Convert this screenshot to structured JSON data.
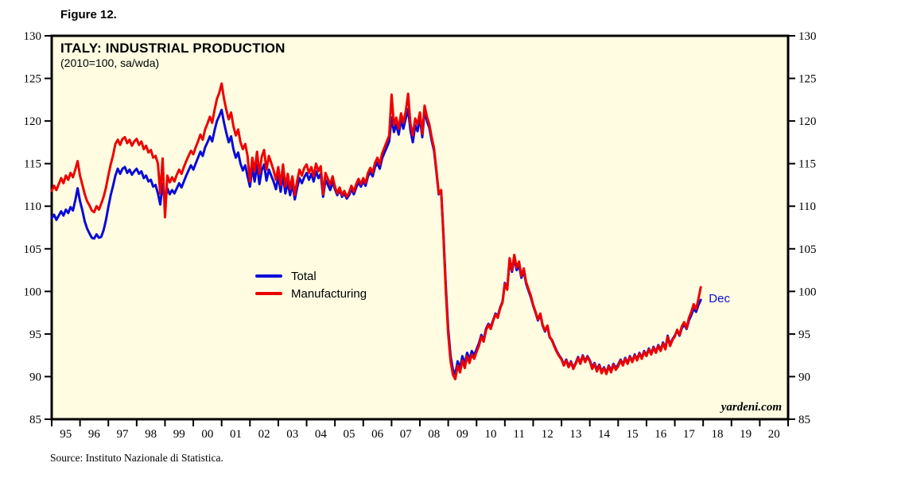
{
  "figure_label": "Figure 12.",
  "source_note": "Source: Instituto Nazionale di Statistica.",
  "watermark": "yardeni.com",
  "chart_data": {
    "type": "line",
    "title": "ITALY: INDUSTRIAL PRODUCTION",
    "subtitle": "(2010=100, sa/wda)",
    "plot_bg": "#fffce1",
    "border_color": "#000000",
    "grid": false,
    "legend_position": "center-left",
    "ylim": [
      85,
      130
    ],
    "y_ticks": [
      85,
      90,
      95,
      100,
      105,
      110,
      115,
      120,
      125,
      130
    ],
    "x_start_year": 1995,
    "x_range_years": 26,
    "points_per_year": 12,
    "x_tick_labels": [
      "95",
      "96",
      "97",
      "98",
      "99",
      "00",
      "01",
      "02",
      "03",
      "04",
      "05",
      "06",
      "07",
      "08",
      "09",
      "10",
      "11",
      "12",
      "13",
      "14",
      "15",
      "16",
      "17",
      "18",
      "19",
      "20"
    ],
    "annotation": {
      "text": "Dec",
      "color": "#0a0ad8",
      "x_year": 2018.2,
      "y_value": 99.0
    },
    "series": [
      {
        "name": "Total",
        "color": "#0a0ad8",
        "values": [
          108.6,
          109.0,
          108.4,
          108.9,
          109.4,
          108.9,
          109.6,
          109.2,
          109.9,
          109.5,
          110.7,
          112.1,
          110.6,
          109.5,
          108.2,
          107.4,
          106.8,
          106.3,
          106.2,
          106.7,
          106.3,
          106.4,
          107.2,
          108.4,
          109.9,
          111.3,
          112.4,
          113.6,
          114.4,
          113.8,
          114.4,
          114.6,
          113.9,
          114.3,
          113.7,
          114.1,
          114.4,
          113.8,
          114.1,
          113.3,
          113.6,
          112.9,
          113.1,
          112.3,
          112.5,
          111.5,
          110.2,
          112.6,
          110.4,
          112.1,
          111.4,
          111.9,
          111.5,
          112.1,
          112.7,
          112.2,
          112.9,
          113.6,
          114.2,
          114.8,
          114.3,
          115.0,
          115.7,
          116.4,
          115.9,
          116.9,
          117.5,
          118.2,
          117.6,
          118.9,
          120.0,
          120.6,
          121.3,
          119.8,
          118.6,
          117.5,
          118.2,
          116.7,
          115.7,
          116.3,
          115.0,
          114.2,
          114.8,
          113.5,
          112.3,
          114.5,
          112.9,
          114.9,
          112.6,
          114.2,
          114.9,
          113.0,
          114.3,
          113.6,
          112.9,
          112.0,
          113.5,
          111.7,
          113.7,
          111.5,
          112.8,
          111.3,
          112.6,
          110.8,
          112.2,
          113.3,
          112.7,
          113.4,
          113.9,
          113.1,
          113.8,
          112.9,
          114.1,
          113.3,
          113.8,
          111.1,
          113.1,
          112.5,
          111.9,
          112.8,
          112.0,
          111.3,
          111.9,
          111.1,
          111.5,
          110.9,
          111.3,
          112.0,
          111.4,
          112.2,
          112.8,
          112.3,
          112.9,
          112.4,
          113.5,
          114.0,
          113.5,
          114.6,
          115.1,
          114.4,
          115.6,
          116.3,
          116.9,
          117.6,
          120.4,
          118.7,
          119.6,
          118.4,
          120.1,
          119.1,
          120.3,
          121.4,
          118.9,
          117.5,
          119.5,
          118.8,
          120.4,
          118.1,
          121.2,
          120.0,
          119.2,
          117.7,
          116.5,
          114.0,
          111.4,
          111.8,
          106.6,
          100.6,
          95.6,
          92.4,
          90.8,
          90.3,
          91.8,
          91.0,
          92.4,
          91.5,
          92.8,
          92.0,
          93.0,
          92.5,
          93.2,
          93.9,
          94.9,
          94.3,
          95.6,
          96.2,
          95.8,
          96.6,
          97.4,
          97.1,
          98.1,
          98.8,
          101.0,
          100.3,
          103.6,
          102.3,
          103.9,
          102.5,
          103.1,
          101.6,
          102.4,
          100.9,
          100.1,
          99.3,
          98.3,
          97.5,
          96.6,
          97.3,
          96.0,
          95.3,
          95.9,
          94.6,
          94.3,
          93.6,
          93.0,
          92.5,
          92.1,
          91.4,
          92.0,
          91.2,
          91.8,
          91.0,
          91.6,
          92.3,
          91.6,
          92.5,
          91.8,
          92.4,
          91.9,
          91.1,
          91.6,
          90.8,
          91.4,
          90.6,
          91.1,
          90.4,
          91.3,
          90.7,
          91.5,
          91.0,
          91.4,
          92.0,
          91.4,
          92.2,
          91.6,
          92.4,
          91.8,
          92.6,
          92.0,
          92.8,
          92.2,
          93.0,
          92.5,
          93.3,
          92.7,
          93.5,
          92.9,
          93.7,
          93.1,
          94.0,
          93.3,
          94.8,
          93.7,
          94.4,
          94.8,
          95.4,
          94.8,
          95.7,
          96.1,
          95.6,
          96.6,
          97.2,
          98.0,
          97.6,
          98.4,
          99.0
        ]
      },
      {
        "name": "Manufacturing",
        "color": "#ee0000",
        "values": [
          111.8,
          112.4,
          111.9,
          112.6,
          113.3,
          112.7,
          113.6,
          113.1,
          113.9,
          113.4,
          114.3,
          115.3,
          113.6,
          112.5,
          111.4,
          110.6,
          110.1,
          109.5,
          109.3,
          110.0,
          109.6,
          110.3,
          111.1,
          112.2,
          113.6,
          114.9,
          116.0,
          117.3,
          117.8,
          117.2,
          117.9,
          118.1,
          117.4,
          117.8,
          117.1,
          117.6,
          117.9,
          117.2,
          117.6,
          116.7,
          117.1,
          116.3,
          116.6,
          115.7,
          115.9,
          115.0,
          111.5,
          115.6,
          108.7,
          113.6,
          112.8,
          113.4,
          112.9,
          113.7,
          114.3,
          113.8,
          114.6,
          115.3,
          115.9,
          116.5,
          116.1,
          116.9,
          117.6,
          118.4,
          117.8,
          119.0,
          119.7,
          120.5,
          119.8,
          121.3,
          122.6,
          123.3,
          124.4,
          122.6,
          121.3,
          120.2,
          121.0,
          119.4,
          118.3,
          119.0,
          117.5,
          116.7,
          117.3,
          115.9,
          112.9,
          115.7,
          114.1,
          116.4,
          113.8,
          115.8,
          116.6,
          114.3,
          115.9,
          115.1,
          114.2,
          113.1,
          114.6,
          112.5,
          114.9,
          112.3,
          113.8,
          112.0,
          113.5,
          111.3,
          113.0,
          114.3,
          113.6,
          114.5,
          114.9,
          113.9,
          114.6,
          113.5,
          115.0,
          114.1,
          114.7,
          111.4,
          113.9,
          113.2,
          112.5,
          113.5,
          112.3,
          111.5,
          112.2,
          111.3,
          111.8,
          111.1,
          111.6,
          112.4,
          111.7,
          112.6,
          113.2,
          112.6,
          113.3,
          112.7,
          113.9,
          114.5,
          113.9,
          115.1,
          115.7,
          114.9,
          116.2,
          116.9,
          117.6,
          118.3,
          123.1,
          119.5,
          120.4,
          119.1,
          120.9,
          119.8,
          121.1,
          123.2,
          119.7,
          118.3,
          120.3,
          119.6,
          121.0,
          118.5,
          121.8,
          120.5,
          119.6,
          118.1,
          116.8,
          114.2,
          111.5,
          111.9,
          106.3,
          100.0,
          95.0,
          91.8,
          90.2,
          89.7,
          91.3,
          90.5,
          91.9,
          91.0,
          92.4,
          91.6,
          92.6,
          92.1,
          92.9,
          93.6,
          94.7,
          94.1,
          95.4,
          96.1,
          95.6,
          96.5,
          97.3,
          96.9,
          98.0,
          98.7,
          100.9,
          100.2,
          103.9,
          102.5,
          104.3,
          102.8,
          103.5,
          101.8,
          102.7,
          101.1,
          100.3,
          99.5,
          98.4,
          97.6,
          96.7,
          97.4,
          96.1,
          95.4,
          96.0,
          94.7,
          94.2,
          93.5,
          92.9,
          92.4,
          92.0,
          91.3,
          91.9,
          91.1,
          91.7,
          90.9,
          91.5,
          92.2,
          91.5,
          92.4,
          91.7,
          92.3,
          91.8,
          90.9,
          91.5,
          90.6,
          91.3,
          90.4,
          91.0,
          90.3,
          91.2,
          90.5,
          91.4,
          90.8,
          91.2,
          91.9,
          91.3,
          92.1,
          91.5,
          92.3,
          91.7,
          92.5,
          91.9,
          92.7,
          92.1,
          92.9,
          92.4,
          93.2,
          92.6,
          93.4,
          92.8,
          93.6,
          93.0,
          93.9,
          93.2,
          94.7,
          93.6,
          94.3,
          94.7,
          95.5,
          94.9,
          95.9,
          96.4,
          95.7,
          96.9,
          97.6,
          98.5,
          97.9,
          99.1,
          100.5
        ]
      }
    ]
  }
}
